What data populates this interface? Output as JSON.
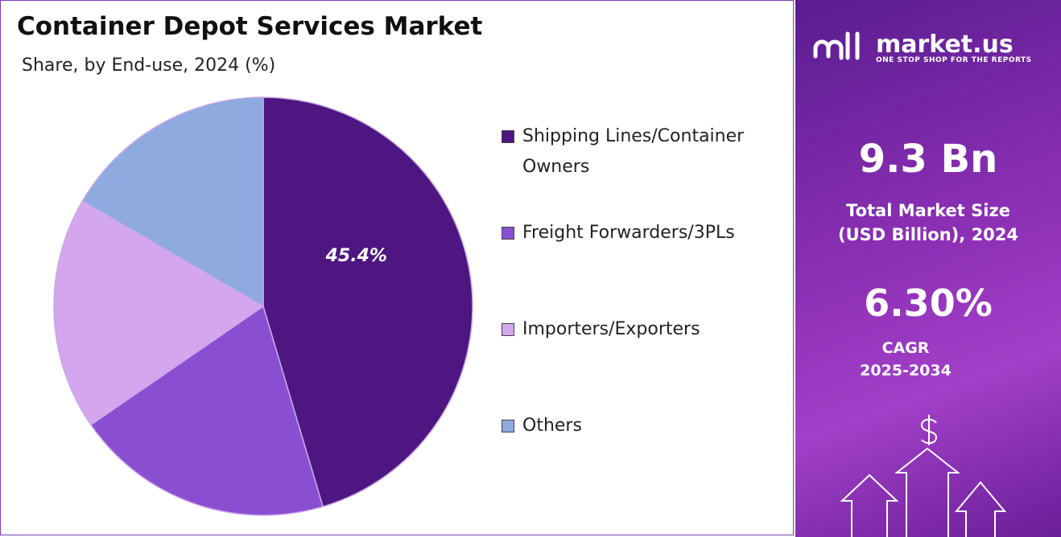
{
  "chart_data": {
    "type": "pie",
    "title": "Container Depot Services Market",
    "subtitle": "Share, by End-use, 2024 (%)",
    "categories": [
      "Shipping Lines/Container Owners",
      "Freight Forwarders/3PLs",
      "Importers/Exporters",
      "Others"
    ],
    "values": [
      45.4,
      20.0,
      18.0,
      16.6
    ],
    "value_labels": [
      "45.4%",
      null,
      null,
      null
    ],
    "colors": [
      "#4d1681",
      "#8a4fd1",
      "#d4a6ee",
      "#8eaadf"
    ],
    "legend": "right"
  },
  "panel": {
    "brand": "market.us",
    "tagline": "ONE STOP SHOP FOR THE REPORTS",
    "market_size": "9.3 Bn",
    "market_size_label": [
      "Total Market Size",
      "(USD Billion), 2024"
    ],
    "cagr": "6.30%",
    "cagr_label": [
      "CAGR",
      "2025-2034"
    ]
  }
}
